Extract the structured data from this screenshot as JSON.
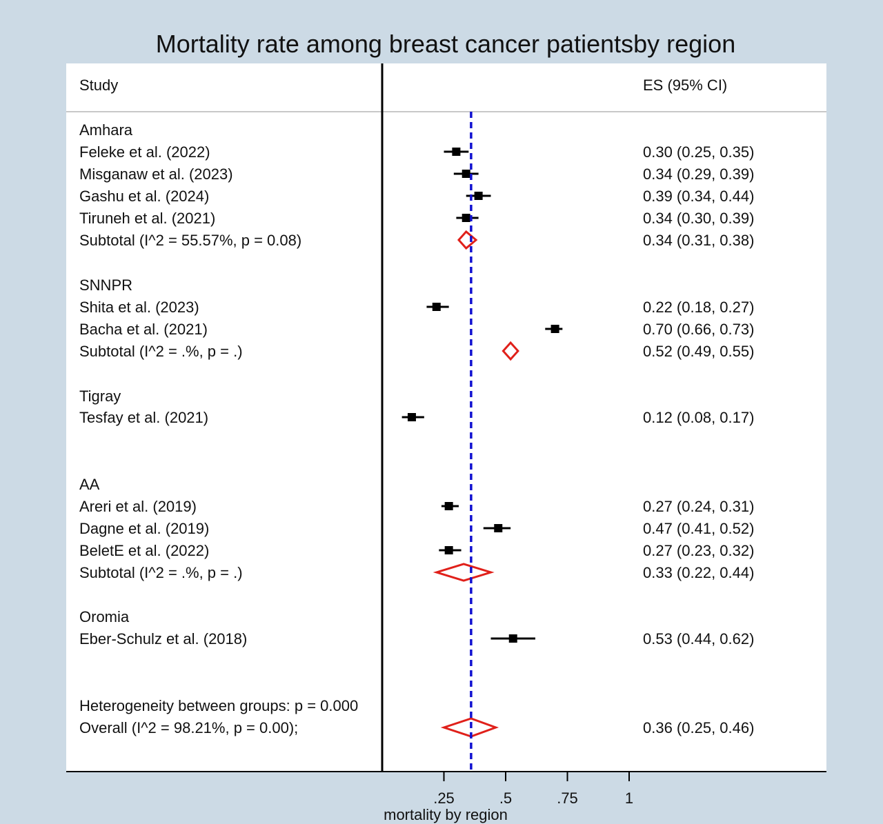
{
  "chart_data": {
    "type": "forest",
    "title": "Mortality rate  among breast cancer patientsby region",
    "header": {
      "study": "Study",
      "estimate": "ES (95% CI)"
    },
    "xlabel": "mortality by region",
    "xlim": [
      0.0,
      1.1
    ],
    "xticks": [
      {
        "value": 0.25,
        "label": ".25"
      },
      {
        "value": 0.5,
        "label": ".5"
      },
      {
        "value": 0.75,
        "label": ".75"
      },
      {
        "value": 1.0,
        "label": "1"
      }
    ],
    "overall_reference_line": 0.36,
    "null_line": 0.0,
    "colors": {
      "study_marker": "#000000",
      "diamond": "#e0201a",
      "reference_line": "#1010d0",
      "panel_background": "#ffffff",
      "outer_background": "#ccdae5",
      "header_separator": "#c8c8c8"
    },
    "groups": [
      {
        "name": "Amhara",
        "studies": [
          {
            "label": "Feleke et al. (2022)",
            "es": 0.3,
            "lo": 0.25,
            "hi": 0.35,
            "text": "0.30 (0.25, 0.35)"
          },
          {
            "label": "Misganaw et al. (2023)",
            "es": 0.34,
            "lo": 0.29,
            "hi": 0.39,
            "text": "0.34 (0.29, 0.39)"
          },
          {
            "label": "Gashu et al.  (2024)",
            "es": 0.39,
            "lo": 0.34,
            "hi": 0.44,
            "text": "0.39 (0.34, 0.44)"
          },
          {
            "label": "Tiruneh et al. (2021)",
            "es": 0.34,
            "lo": 0.3,
            "hi": 0.39,
            "text": "0.34 (0.30, 0.39)"
          }
        ],
        "subtotal": {
          "label": "Subtotal  (I^2 = 55.57%, p = 0.08)",
          "es": 0.34,
          "lo": 0.31,
          "hi": 0.38,
          "text": "0.34 (0.31, 0.38)"
        }
      },
      {
        "name": "SNNPR",
        "studies": [
          {
            "label": "Shita et al. (2023)",
            "es": 0.22,
            "lo": 0.18,
            "hi": 0.27,
            "text": "0.22 (0.18, 0.27)"
          },
          {
            "label": "Bacha  et al. (2021)",
            "es": 0.7,
            "lo": 0.66,
            "hi": 0.73,
            "text": "0.70 (0.66, 0.73)"
          }
        ],
        "subtotal": {
          "label": "Subtotal  (I^2 = .%, p = .)",
          "es": 0.52,
          "lo": 0.49,
          "hi": 0.55,
          "text": "0.52 (0.49, 0.55)"
        }
      },
      {
        "name": "Tigray",
        "studies": [
          {
            "label": "Tesfay et al. (2021)",
            "es": 0.12,
            "lo": 0.08,
            "hi": 0.17,
            "text": "0.12 (0.08, 0.17)"
          }
        ],
        "subtotal": null
      },
      {
        "name": "AA",
        "studies": [
          {
            "label": "Areri  et al. (2019)",
            "es": 0.27,
            "lo": 0.24,
            "hi": 0.31,
            "text": "0.27 (0.24, 0.31)"
          },
          {
            "label": "Dagne et al. (2019)",
            "es": 0.47,
            "lo": 0.41,
            "hi": 0.52,
            "text": "0.47 (0.41, 0.52)"
          },
          {
            "label": "BeletE et al. (2022)",
            "es": 0.27,
            "lo": 0.23,
            "hi": 0.32,
            "text": "0.27 (0.23, 0.32)"
          }
        ],
        "subtotal": {
          "label": "Subtotal  (I^2 = .%, p = .)",
          "es": 0.33,
          "lo": 0.22,
          "hi": 0.44,
          "text": "0.33 (0.22, 0.44)"
        }
      },
      {
        "name": "Oromia",
        "studies": [
          {
            "label": "Eber-Schulz et al. (2018)",
            "es": 0.53,
            "lo": 0.44,
            "hi": 0.62,
            "text": "0.53 (0.44, 0.62)"
          }
        ],
        "subtotal": null
      }
    ],
    "heterogeneity_text": "Heterogeneity between groups: p = 0.000",
    "overall": {
      "label": "Overall  (I^2 = 98.21%, p = 0.00);",
      "es": 0.36,
      "lo": 0.25,
      "hi": 0.46,
      "text": "0.36 (0.25, 0.46)"
    }
  }
}
